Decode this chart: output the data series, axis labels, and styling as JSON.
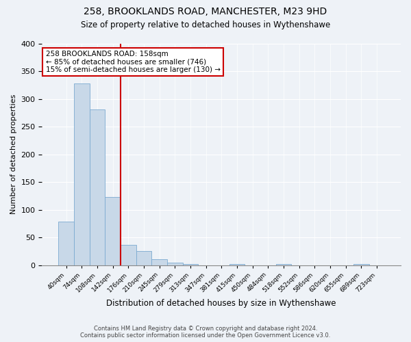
{
  "title_line1": "258, BROOKLANDS ROAD, MANCHESTER, M23 9HD",
  "title_line2": "Size of property relative to detached houses in Wythenshawe",
  "xlabel": "Distribution of detached houses by size in Wythenshawe",
  "ylabel": "Number of detached properties",
  "bar_values": [
    78,
    328,
    281,
    123,
    37,
    25,
    10,
    4,
    2,
    0,
    0,
    2,
    0,
    0,
    2,
    0,
    0,
    0,
    0,
    2,
    0
  ],
  "bar_labels": [
    "40sqm",
    "74sqm",
    "108sqm",
    "142sqm",
    "176sqm",
    "210sqm",
    "245sqm",
    "279sqm",
    "313sqm",
    "347sqm",
    "381sqm",
    "415sqm",
    "450sqm",
    "484sqm",
    "518sqm",
    "552sqm",
    "586sqm",
    "620sqm",
    "655sqm",
    "689sqm",
    "723sqm"
  ],
  "bar_color": "#c8d8e8",
  "bar_edge_color": "#7baad0",
  "vline_color": "#cc0000",
  "annotation_title": "258 BROOKLANDS ROAD: 158sqm",
  "annotation_line1": "← 85% of detached houses are smaller (746)",
  "annotation_line2": "15% of semi-detached houses are larger (130) →",
  "annotation_box_color": "#ffffff",
  "annotation_box_edge_color": "#cc0000",
  "ylim": [
    0,
    400
  ],
  "yticks": [
    0,
    50,
    100,
    150,
    200,
    250,
    300,
    350,
    400
  ],
  "footnote_line1": "Contains HM Land Registry data © Crown copyright and database right 2024.",
  "footnote_line2": "Contains public sector information licensed under the Open Government Licence v3.0.",
  "bg_color": "#eef2f7"
}
